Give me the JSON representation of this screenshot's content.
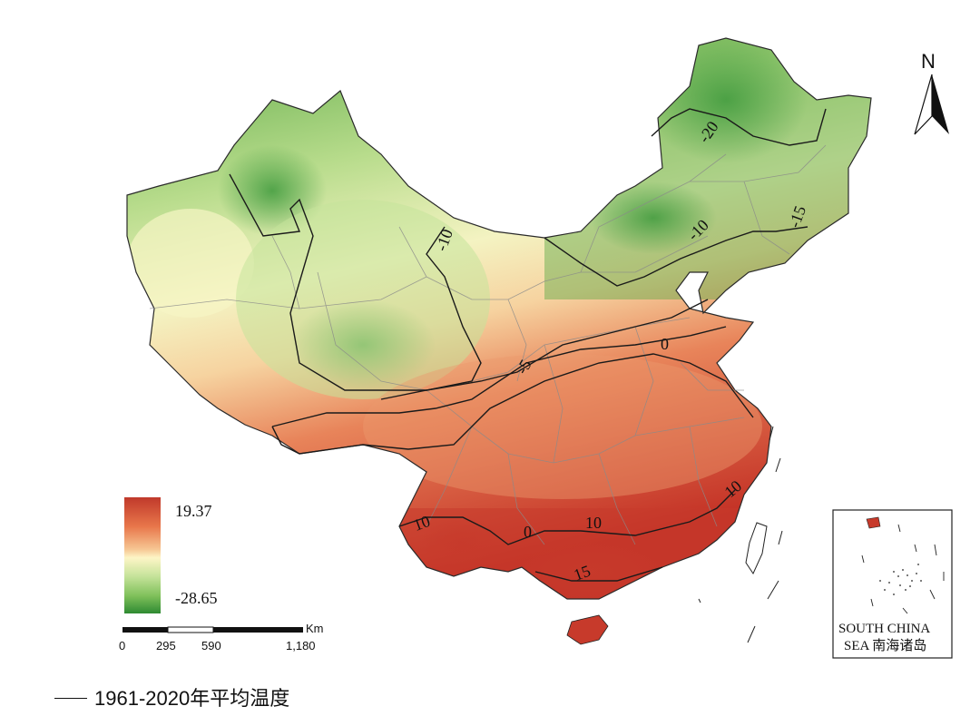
{
  "map": {
    "caption": "1961-2020年平均温度",
    "north_label": "N",
    "legend": {
      "max_label": "19.37",
      "min_label": "-28.65",
      "colors": [
        "#c0392b",
        "#e8764a",
        "#f6c794",
        "#fdf5c6",
        "#c5e39a",
        "#7fc05a",
        "#2e8a32"
      ]
    },
    "scalebar": {
      "unit": "Km",
      "ticks": [
        "0",
        "295",
        "590",
        "1,180"
      ]
    },
    "inset": {
      "line1": "SOUTH CHINA",
      "line2": "SEA 南海诸岛"
    },
    "contours": [
      "-20",
      "-15",
      "-10",
      "-10",
      "-5",
      "0",
      "0",
      "10",
      "10",
      "10",
      "15"
    ],
    "colors": {
      "hot": "#c73a2b",
      "warm": "#ec9a6d",
      "mild": "#f8d6a4",
      "neutral": "#f7f5c4",
      "cool": "#d6eba4",
      "cold": "#9ccb73",
      "coldest": "#3f9a3d",
      "contour": "#1a1a1a",
      "boundary": "#8a8a8a"
    }
  }
}
